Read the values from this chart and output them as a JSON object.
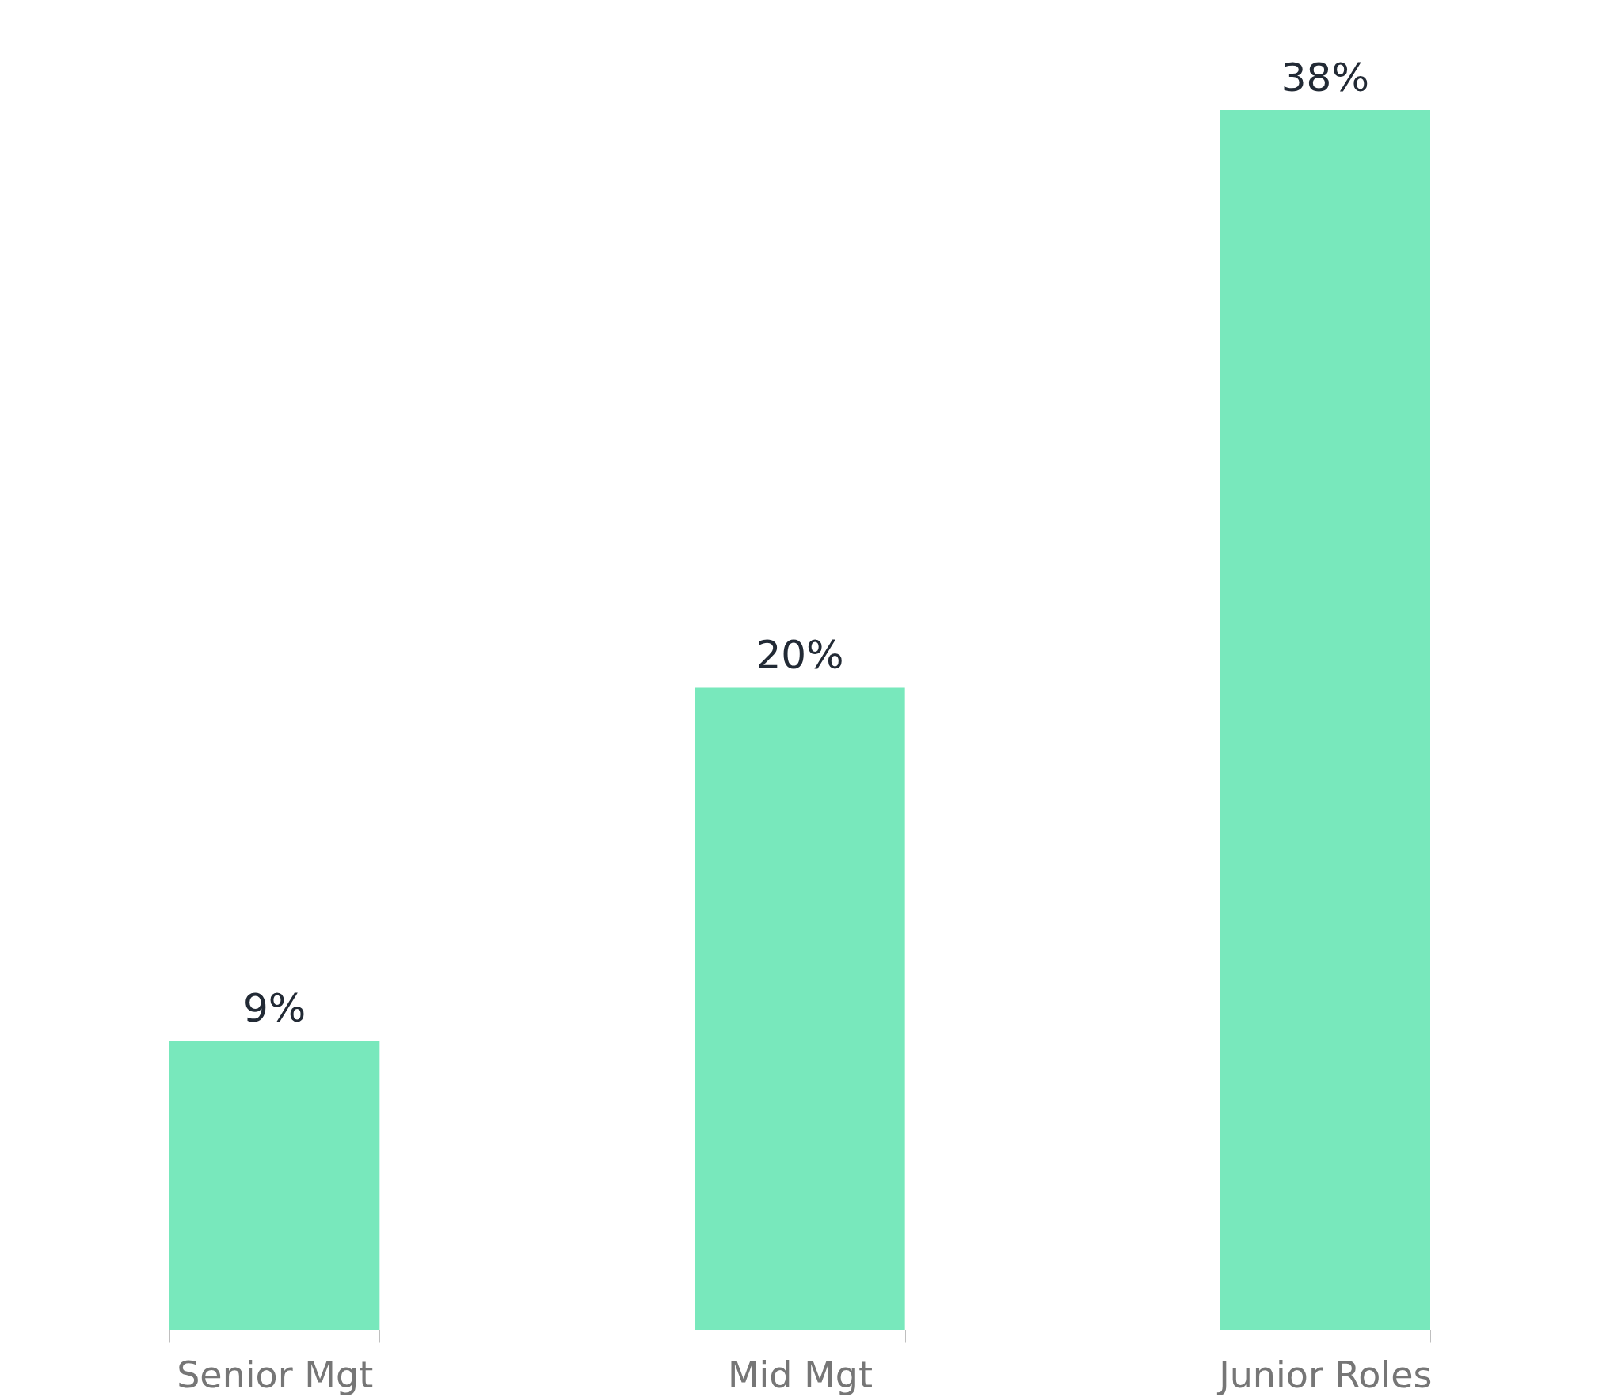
{
  "chart_data": {
    "type": "bar",
    "categories": [
      "Senior Mgt",
      "Mid Mgt",
      "Junior Roles"
    ],
    "values": [
      9,
      20,
      38
    ],
    "value_labels": [
      "9%",
      "20%",
      "38%"
    ],
    "color": "#78e8bc",
    "grid": false
  }
}
